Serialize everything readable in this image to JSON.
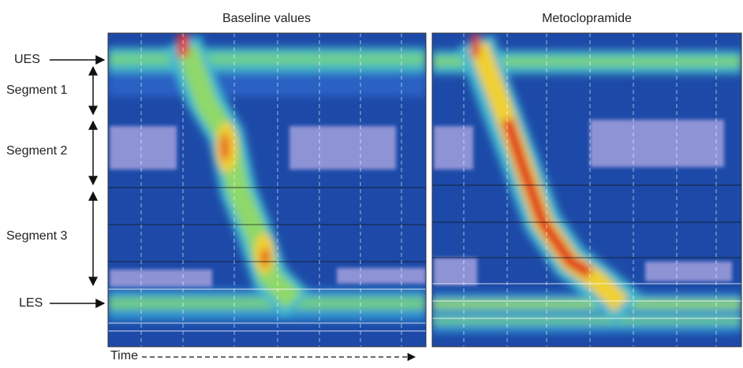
{
  "panels": [
    {
      "title": "Baseline values"
    },
    {
      "title": "Metoclopramide"
    }
  ],
  "labels": {
    "ues": "UES",
    "segment_1": "Segment 1",
    "segment_2": "Segment 2",
    "segment_3": "Segment 3",
    "les": "LES",
    "time": "Time"
  }
}
